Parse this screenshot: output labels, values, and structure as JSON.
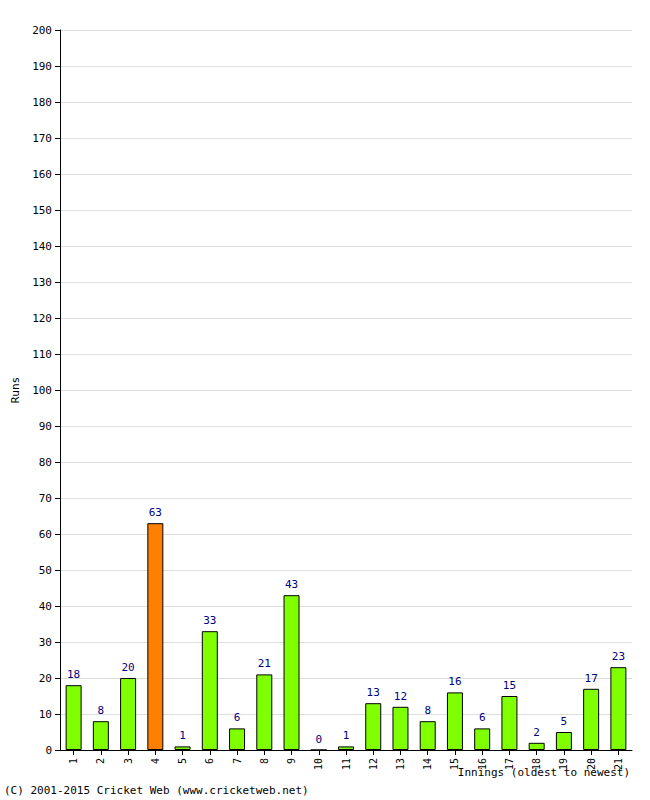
{
  "chart_data": {
    "type": "bar",
    "y_label": "Runs",
    "x_label": "Innings (oldest to newest)",
    "annotations": [
      "(C) 2001-2015 Cricket Web (www.cricketweb.net)"
    ],
    "categories": [
      "1",
      "2",
      "3",
      "4",
      "5",
      "6",
      "7",
      "8",
      "9",
      "10",
      "11",
      "12",
      "13",
      "14",
      "15",
      "16",
      "17",
      "18",
      "19",
      "20",
      "21"
    ],
    "values": [
      18,
      8,
      20,
      63,
      1,
      33,
      6,
      21,
      43,
      0,
      1,
      13,
      12,
      8,
      16,
      6,
      15,
      2,
      5,
      17,
      23
    ],
    "colors": [
      "#80ff00",
      "#80ff00",
      "#80ff00",
      "#ff8000",
      "#80ff00",
      "#80ff00",
      "#80ff00",
      "#80ff00",
      "#80ff00",
      "#80ff00",
      "#80ff00",
      "#80ff00",
      "#80ff00",
      "#80ff00",
      "#80ff00",
      "#80ff00",
      "#80ff00",
      "#80ff00",
      "#80ff00",
      "#80ff00",
      "#80ff00"
    ],
    "ylim": [
      0,
      200
    ],
    "yticks": [
      0,
      10,
      20,
      30,
      40,
      50,
      60,
      70,
      80,
      90,
      100,
      110,
      120,
      130,
      140,
      150,
      160,
      170,
      180,
      190,
      200
    ],
    "grid": true,
    "data_labels": true
  }
}
